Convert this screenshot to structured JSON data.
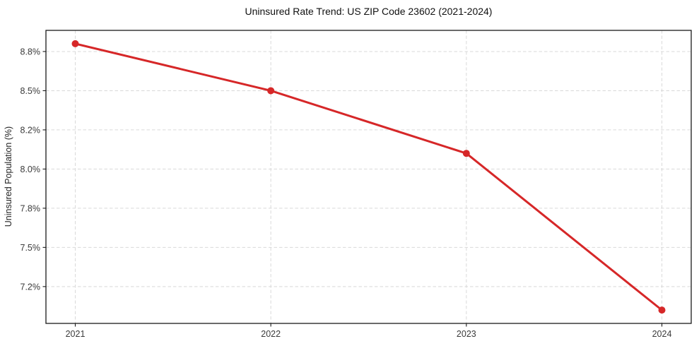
{
  "chart_data": {
    "type": "line",
    "title": "Uninsured Rate Trend: US ZIP Code 23602 (2021-2024)",
    "xlabel": "",
    "ylabel": "Uninsured Population (%)",
    "x": [
      2021,
      2022,
      2023,
      2024
    ],
    "series": [
      {
        "name": "Uninsured rate",
        "values": [
          8.8,
          8.5,
          8.1,
          7.1
        ]
      }
    ],
    "xlim": [
      2020.85,
      2024.15
    ],
    "ylim": [
      7.015,
      8.885
    ],
    "xticks": [
      2021,
      2022,
      2023,
      2024
    ],
    "xtick_labels": [
      "2021",
      "2022",
      "2023",
      "2024"
    ],
    "yticks": [
      7.25,
      7.5,
      7.75,
      8.0,
      8.25,
      8.5,
      8.75
    ],
    "ytick_labels": [
      "7.2%",
      "7.5%",
      "7.8%",
      "8.0%",
      "8.2%",
      "8.5%",
      "8.8%"
    ],
    "grid": true,
    "legend": "none",
    "colors": {
      "line": "#d62728",
      "marker": "#d62728",
      "grid": "#d9d9d9",
      "spine": "#1a1a1a",
      "tick_label": "#3a3a3a",
      "background": "#ffffff"
    }
  }
}
